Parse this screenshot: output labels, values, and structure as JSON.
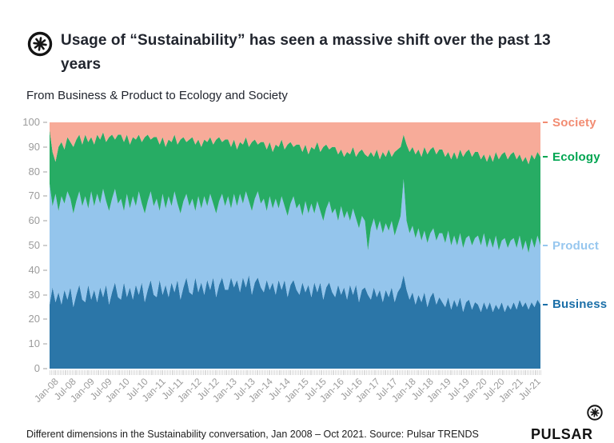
{
  "header": {
    "title": "Usage of “Sustainability” has seen a massive shift over the past 13 years",
    "subtitle": "From Business & Product to Ecology and Society"
  },
  "footer": {
    "caption": "Different dimensions in the Sustainability conversation,  Jan 2008 – Oct 2021. Source: Pulsar TRENDS",
    "brand": "PULSAR"
  },
  "chart_data": {
    "type": "area",
    "stacking": "percent-stacked",
    "title": "Usage of “Sustainability” has seen a massive shift over the past 13 years",
    "subtitle": "From Business & Product to Ecology and Society",
    "x_unit": "month",
    "x_start": "Jan-08",
    "x_end": "Oct-21",
    "months_total": 166,
    "ylim": [
      0,
      100
    ],
    "y_ticks": [
      0,
      10,
      20,
      30,
      40,
      50,
      60,
      70,
      80,
      90,
      100
    ],
    "grid": "off",
    "legend_position": "right-edge, anchored to each band top boundary",
    "x_tick_labels": [
      "Jan-08",
      "Jul-08",
      "Jan-09",
      "Jul-09",
      "Jan-10",
      "Jul-10",
      "Jan-11",
      "Jul-11",
      "Jan-12",
      "Jul-12",
      "Jan-13",
      "Jul-13",
      "Jan-14",
      "Jul-14",
      "Jan-15",
      "Jul-15",
      "Jan-16",
      "Jul-16",
      "Jan-17",
      "Jul-17",
      "Jan-18",
      "Jul-18",
      "Jan-19",
      "Jul-19",
      "Jan-20",
      "Jul-20",
      "Jan-21",
      "Jul-21"
    ],
    "x_label_month_interval": 6,
    "note": "cumulative arrays give each band's TOP boundary (stacked % of conversation, monthly Jan-08..Oct-21); Society fills from Ecology boundary up to 100",
    "series": [
      {
        "name": "Business",
        "color": "#2B76A8",
        "label_color": "#1B6FA8",
        "cumulative": [
          26,
          33,
          27,
          31,
          26,
          32,
          28,
          33,
          25,
          30,
          34,
          28,
          27,
          34,
          28,
          32,
          27,
          33,
          29,
          34,
          26,
          31,
          35,
          29,
          28,
          35,
          29,
          33,
          28,
          34,
          30,
          35,
          27,
          32,
          36,
          30,
          29,
          36,
          30,
          34,
          29,
          35,
          31,
          36,
          28,
          33,
          37,
          31,
          30,
          37,
          31,
          35,
          30,
          36,
          32,
          37,
          29,
          34,
          37,
          32,
          32,
          37,
          33,
          36,
          31,
          37,
          33,
          38,
          30,
          35,
          37,
          33,
          31,
          36,
          32,
          35,
          30,
          36,
          32,
          36,
          29,
          34,
          36,
          32,
          30,
          35,
          31,
          34,
          29,
          35,
          31,
          35,
          28,
          33,
          35,
          31,
          29,
          34,
          30,
          33,
          28,
          34,
          30,
          34,
          27,
          32,
          33,
          30,
          28,
          33,
          29,
          32,
          27,
          32,
          29,
          33,
          27,
          31,
          33,
          38,
          32,
          28,
          31,
          26,
          30,
          27,
          31,
          25,
          29,
          31,
          26,
          29,
          27,
          25,
          29,
          24,
          28,
          25,
          29,
          23,
          27,
          28,
          24,
          27,
          26,
          23,
          27,
          24,
          27,
          23,
          26,
          24,
          27,
          23,
          26,
          24,
          27,
          24,
          28,
          25,
          27,
          24,
          27,
          25,
          28,
          26
        ]
      },
      {
        "name": "Product",
        "color": "#94C5EC",
        "label_color": "#97C7EF",
        "cumulative": [
          75,
          66,
          71,
          64,
          70,
          67,
          72,
          69,
          63,
          68,
          72,
          66,
          70,
          65,
          72,
          66,
          71,
          67,
          73,
          68,
          64,
          69,
          73,
          67,
          69,
          64,
          71,
          65,
          70,
          66,
          72,
          67,
          63,
          68,
          72,
          66,
          69,
          64,
          71,
          65,
          70,
          66,
          72,
          67,
          63,
          68,
          71,
          66,
          69,
          64,
          70,
          65,
          70,
          66,
          71,
          67,
          63,
          68,
          71,
          66,
          70,
          65,
          71,
          66,
          71,
          67,
          72,
          68,
          64,
          69,
          72,
          67,
          69,
          64,
          70,
          65,
          69,
          65,
          70,
          66,
          62,
          67,
          70,
          65,
          67,
          62,
          68,
          63,
          67,
          63,
          68,
          64,
          60,
          65,
          68,
          63,
          65,
          60,
          66,
          61,
          64,
          60,
          65,
          61,
          57,
          62,
          60,
          48,
          57,
          61,
          56,
          60,
          55,
          59,
          56,
          60,
          54,
          58,
          62,
          77,
          60,
          55,
          58,
          53,
          57,
          52,
          56,
          51,
          55,
          57,
          52,
          55,
          55,
          51,
          56,
          50,
          54,
          50,
          55,
          49,
          53,
          54,
          50,
          53,
          54,
          50,
          55,
          49,
          53,
          49,
          54,
          48,
          52,
          53,
          49,
          52,
          53,
          49,
          54,
          48,
          52,
          47,
          53,
          49,
          54,
          50
        ]
      },
      {
        "name": "Ecology",
        "color": "#27AC64",
        "label_color": "#00A551",
        "cumulative": [
          97,
          88,
          84,
          90,
          92,
          89,
          94,
          92,
          90,
          93,
          95,
          91,
          95,
          92,
          94,
          91,
          95,
          93,
          96,
          92,
          94,
          95,
          93,
          95,
          95,
          92,
          95,
          91,
          94,
          93,
          95,
          92,
          94,
          95,
          93,
          94,
          94,
          91,
          94,
          90,
          93,
          92,
          95,
          91,
          93,
          94,
          92,
          93,
          94,
          91,
          93,
          90,
          93,
          92,
          94,
          91,
          93,
          94,
          92,
          93,
          93,
          90,
          93,
          89,
          92,
          91,
          94,
          90,
          92,
          93,
          91,
          92,
          92,
          89,
          92,
          88,
          91,
          90,
          93,
          89,
          91,
          92,
          90,
          91,
          91,
          88,
          91,
          87,
          90,
          89,
          92,
          88,
          90,
          91,
          89,
          90,
          90,
          87,
          89,
          86,
          88,
          87,
          90,
          86,
          88,
          89,
          87,
          86,
          88,
          86,
          89,
          85,
          88,
          86,
          89,
          86,
          88,
          89,
          90,
          95,
          91,
          88,
          90,
          87,
          89,
          86,
          90,
          87,
          89,
          90,
          87,
          89,
          89,
          86,
          88,
          85,
          88,
          85,
          89,
          86,
          88,
          89,
          86,
          88,
          88,
          85,
          87,
          84,
          87,
          84,
          88,
          85,
          87,
          88,
          85,
          87,
          88,
          85,
          87,
          84,
          86,
          83,
          87,
          85,
          88,
          86
        ]
      },
      {
        "name": "Society",
        "color": "#F7AB99",
        "label_color": "#F28C72",
        "fills_to": 100
      }
    ]
  }
}
